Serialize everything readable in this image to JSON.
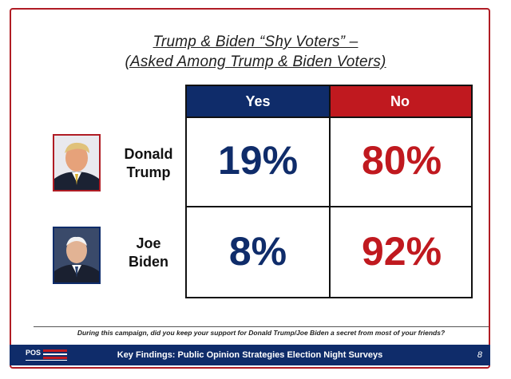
{
  "colors": {
    "yes": "#0f2c6a",
    "no": "#c0191f",
    "frame": "#b01c24",
    "footer": "#0f2c6a"
  },
  "title_line1": "Trump & Biden “Shy Voters” –",
  "title_line2": "(Asked Among Trump & Biden Voters)",
  "chart_data": {
    "type": "table",
    "title": "Trump & Biden “Shy Voters” – (Asked Among Trump & Biden Voters)",
    "columns": [
      "Yes",
      "No"
    ],
    "rows": [
      {
        "label": "Donald Trump",
        "label_line1": "Donald",
        "label_line2": "Trump",
        "values": [
          "19%",
          "80%"
        ]
      },
      {
        "label": "Joe Biden",
        "label_line1": "Joe",
        "label_line2": "Biden",
        "values": [
          "8%",
          "92%"
        ]
      }
    ],
    "numeric": {
      "Donald Trump": {
        "Yes": 19,
        "No": 80
      },
      "Joe Biden": {
        "Yes": 8,
        "No": 92
      }
    }
  },
  "question": "During this campaign, did you keep your support for Donald Trump/Joe Biden a secret from most of your friends?",
  "footer": {
    "logo": "POS",
    "text": "Key Findings: Public Opinion Strategies Election Night Surveys",
    "page": "8"
  }
}
